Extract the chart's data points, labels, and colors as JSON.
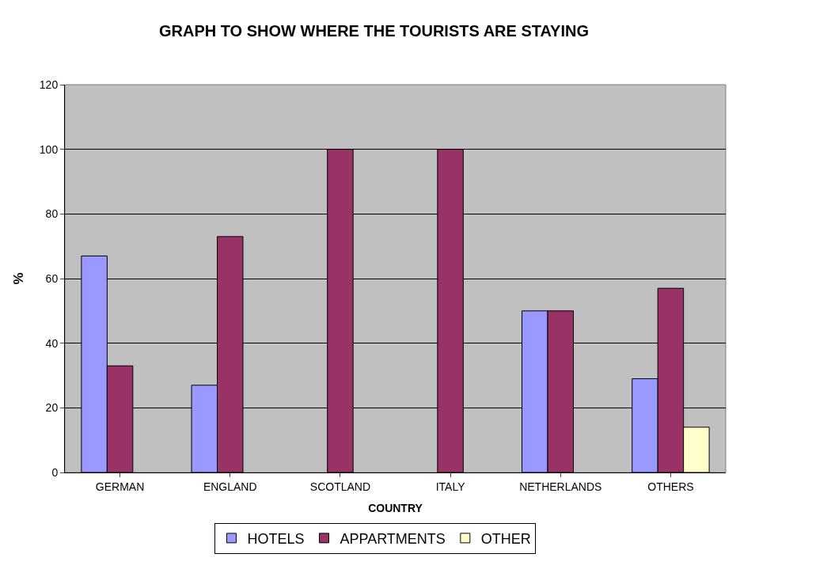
{
  "chart_data": {
    "type": "bar",
    "title": "GRAPH TO SHOW WHERE THE TOURISTS ARE STAYING",
    "xlabel": "COUNTRY",
    "ylabel": "%",
    "categories": [
      "GERMAN",
      "ENGLAND",
      "SCOTLAND",
      "ITALY",
      "NETHERLANDS",
      "OTHERS"
    ],
    "series": [
      {
        "name": "HOTELS",
        "color": "#9999ff",
        "values": [
          67,
          27,
          null,
          null,
          50,
          29
        ]
      },
      {
        "name": "APPARTMENTS",
        "color": "#993366",
        "values": [
          33,
          73,
          100,
          100,
          50,
          57
        ]
      },
      {
        "name": "OTHER",
        "color": "#ffffcc",
        "values": [
          null,
          null,
          null,
          null,
          null,
          14
        ]
      }
    ],
    "ylim": [
      0,
      120
    ],
    "yticks": [
      0,
      20,
      40,
      60,
      80,
      100,
      120
    ],
    "grid": "y",
    "legend": "bottom"
  }
}
